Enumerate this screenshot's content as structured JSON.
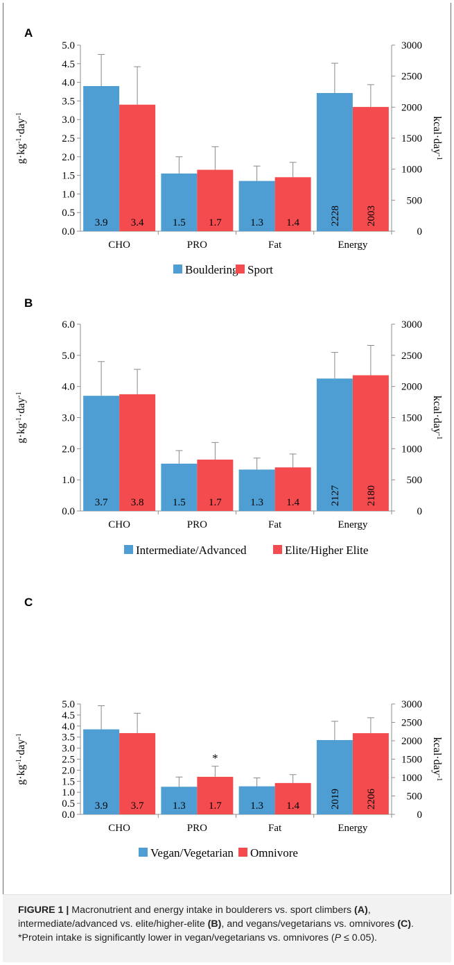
{
  "colors": {
    "bouldering_blue": "#4e9ed3",
    "sport_red": "#f44b4e"
  },
  "chart_data": [
    {
      "panel": "A",
      "type": "bar",
      "categories": [
        "CHO",
        "PRO",
        "Fat",
        "Energy"
      ],
      "ylabel": "g·kg⁻¹·day⁻¹",
      "y2label": "kcal·day⁻¹",
      "ylim": [
        0,
        5.0
      ],
      "yticks": [
        "0.0",
        "0.5",
        "1.0",
        "1.5",
        "2.0",
        "2.5",
        "3.0",
        "3.5",
        "4.0",
        "4.5",
        "5.0"
      ],
      "y2lim": [
        0,
        3000
      ],
      "y2ticks": [
        "0",
        "500",
        "1000",
        "1500",
        "2000",
        "2500",
        "3000"
      ],
      "series": [
        {
          "name": "Bouldering",
          "color": "#4e9ed3",
          "values": [
            3.9,
            1.55,
            1.35,
            2228
          ],
          "errors": [
            0.85,
            0.45,
            0.4,
            480
          ],
          "labels": [
            "3.9",
            "1.5",
            "1.3",
            "2228"
          ]
        },
        {
          "name": "Sport",
          "color": "#f44b4e",
          "values": [
            3.4,
            1.65,
            1.45,
            2003
          ],
          "errors": [
            1.02,
            0.62,
            0.4,
            360
          ],
          "labels": [
            "3.4",
            "1.7",
            "1.4",
            "2003"
          ]
        }
      ],
      "annotations": [],
      "legend": "bottom"
    },
    {
      "panel": "B",
      "type": "bar",
      "categories": [
        "CHO",
        "PRO",
        "Fat",
        "Energy"
      ],
      "ylabel": "g·kg⁻¹·day⁻¹",
      "y2label": "kcal·day⁻¹",
      "ylim": [
        0,
        6.0
      ],
      "yticks": [
        "0.0",
        "1.0",
        "2.0",
        "3.0",
        "4.0",
        "5.0",
        "6.0"
      ],
      "y2lim": [
        0,
        3000
      ],
      "y2ticks": [
        "0",
        "500",
        "1000",
        "1500",
        "2000",
        "2500",
        "3000"
      ],
      "series": [
        {
          "name": "Intermediate/Advanced",
          "color": "#4e9ed3",
          "values": [
            3.7,
            1.52,
            1.33,
            2127
          ],
          "errors": [
            1.1,
            0.42,
            0.37,
            420
          ],
          "labels": [
            "3.7",
            "1.5",
            "1.3",
            "2127"
          ]
        },
        {
          "name": "Elite/Higher Elite",
          "color": "#f44b4e",
          "values": [
            3.75,
            1.65,
            1.4,
            2180
          ],
          "errors": [
            0.8,
            0.55,
            0.43,
            480
          ],
          "labels": [
            "3.8",
            "1.7",
            "1.4",
            "2180"
          ]
        }
      ],
      "annotations": [],
      "legend": "bottom"
    },
    {
      "panel": "C",
      "type": "bar",
      "categories": [
        "CHO",
        "PRO",
        "Fat",
        "Energy"
      ],
      "ylabel": "g·kg⁻¹·day⁻¹",
      "y2label": "kcal·day⁻¹",
      "ylim": [
        0,
        5.0
      ],
      "yticks": [
        "0.0",
        "0.5",
        "1.0",
        "1.5",
        "2.0",
        "2.5",
        "3.0",
        "3.5",
        "4.0",
        "4.5",
        "5.0"
      ],
      "y2lim": [
        0,
        3000
      ],
      "y2ticks": [
        "0",
        "500",
        "1000",
        "1500",
        "2000",
        "2500",
        "3000"
      ],
      "series": [
        {
          "name": "Vegan/Vegetarian",
          "color": "#4e9ed3",
          "values": [
            3.85,
            1.25,
            1.27,
            2019
          ],
          "errors": [
            1.07,
            0.44,
            0.38,
            510
          ],
          "labels": [
            "3.9",
            "1.3",
            "1.3",
            "2019"
          ]
        },
        {
          "name": "Omnivore",
          "color": "#f44b4e",
          "values": [
            3.68,
            1.7,
            1.42,
            2206
          ],
          "errors": [
            0.9,
            0.48,
            0.38,
            420
          ],
          "labels": [
            "3.7",
            "1.7",
            "1.4",
            "2206"
          ]
        }
      ],
      "annotations": [
        {
          "text": "*",
          "category": 1,
          "series": 1
        }
      ],
      "legend": "bottom"
    }
  ],
  "caption": {
    "figure_label": "FIGURE 1 |",
    "text_1": " Macronutrient and energy intake in boulderers vs. sport climbers ",
    "bold_a": "(A)",
    "text_2": ", intermediate/advanced vs. elite/higher-elite ",
    "bold_b": "(B)",
    "text_3": ", and vegans/vegetarians vs. omnivores ",
    "bold_c": "(C)",
    "text_4": ". *Protein intake is significantly lower in vegan/vegetarians vs. omnivores (",
    "p_symbol": "P",
    "text_5": " ≤ 0.05)."
  }
}
